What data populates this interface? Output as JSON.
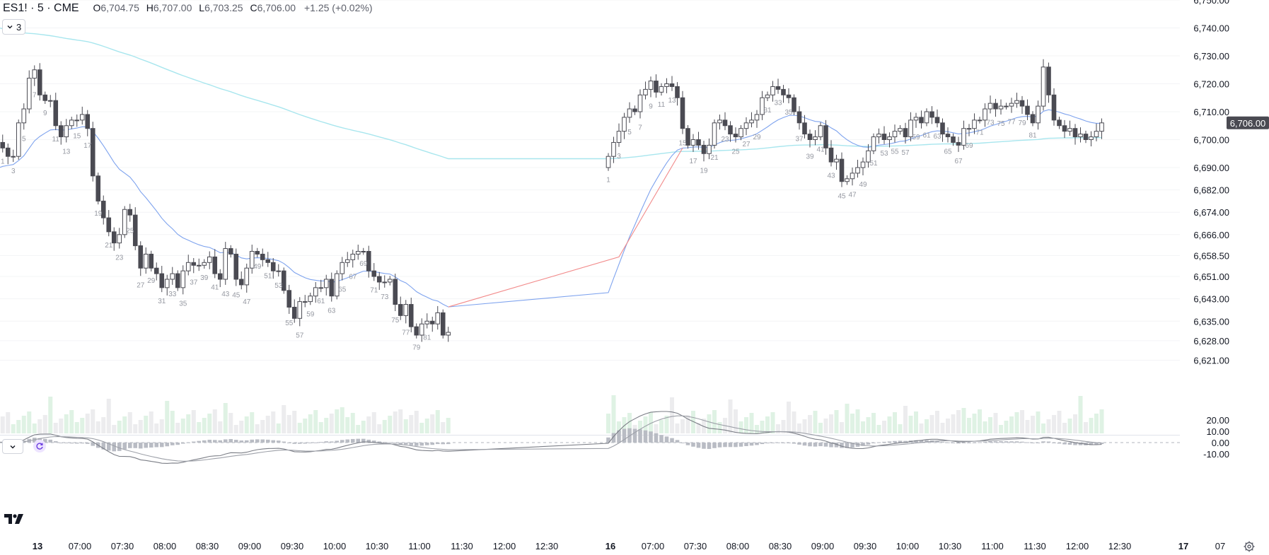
{
  "legend": {
    "symbol": "ES1! · 5 · CME",
    "open_key": "O",
    "open": "6,704.75",
    "high_key": "H",
    "high": "6,707.00",
    "low_key": "L",
    "low": "6,703.25",
    "close_key": "C",
    "close": "6,706.00",
    "change": "+1.25 (+0.02%)"
  },
  "collapse_button": {
    "count": "3",
    "icon": "chevron-down-icon"
  },
  "macd_pane": {
    "toggle_icon": "chevron-down-icon",
    "refresh_icon": "refresh-icon"
  },
  "colors": {
    "up_fill": "#ffffff",
    "candle_stroke": "#4a4a52",
    "down_fill": "#4a4a52",
    "ema_cyan": "#a8e6ee",
    "ema_blue": "#7ea3ee",
    "ema_red": "#f28a8a",
    "vol_up": "#dff2e4",
    "vol_down": "#ececee",
    "macd_hist": "#b9bcc4",
    "price_tag_bg": "#4a4a52",
    "price_tag_text": "#ffffff"
  },
  "chart_data": {
    "type": "candlestick",
    "instrument": "ES1!",
    "interval": "5",
    "exchange": "CME",
    "last_price": "6,706.00",
    "price_axis_ticks": [
      "6,750.00",
      "6,740.00",
      "6,730.00",
      "6,720.00",
      "6,710.00",
      "6,700.00",
      "6,690.00",
      "6,682.00",
      "6,674.00",
      "6,666.00",
      "6,658.50",
      "6,651.00",
      "6,643.00",
      "6,635.00",
      "6,628.00",
      "6,621.00"
    ],
    "macd_axis_ticks": [
      "20.00",
      "10.00",
      "0.00",
      "-10.00"
    ],
    "time_axis_ticks": [
      "13",
      "07:00",
      "07:30",
      "08:00",
      "08:30",
      "09:00",
      "09:30",
      "10:00",
      "10:30",
      "11:00",
      "11:30",
      "12:00",
      "12:30",
      "16",
      "07:00",
      "07:30",
      "08:00",
      "08:30",
      "09:00",
      "09:30",
      "10:00",
      "10:30",
      "11:00",
      "11:30",
      "12:00",
      "12:30",
      "17",
      "07"
    ],
    "time_axis_bold": [
      "13",
      "16",
      "17"
    ],
    "session1": {
      "closes": [
        6696,
        6699,
        6697,
        6694,
        6694,
        6706,
        6711,
        6722,
        6725,
        6716,
        6714,
        6714,
        6705,
        6701,
        6705,
        6707,
        6707,
        6709,
        6704,
        6687,
        6678,
        6672,
        6667,
        6663,
        6666,
        6675,
        6673,
        6662,
        6654,
        6659,
        6654,
        6652,
        6647,
        6650,
        6652,
        6647,
        6653,
        6656,
        6655,
        6655,
        6656,
        6658,
        6652,
        6650,
        6661,
        6659,
        6650,
        6648,
        6654,
        6660,
        6659,
        6657,
        6656,
        6653,
        6653,
        6646,
        6640,
        6636,
        6642,
        6642,
        6644,
        6647,
        6647,
        6650,
        6644,
        6652,
        6656,
        6657,
        6659,
        6660,
        6660,
        6653,
        6651,
        6649,
        6649,
        6650,
        6641,
        6637,
        6641,
        6633,
        6630,
        6634,
        6635,
        6634,
        6638,
        6630,
        6631
      ],
      "bar_labels": {
        "1": "1",
        "3": "3",
        "5": "5",
        "7": "7",
        "9": "9",
        "11": "11",
        "13": "13",
        "15": "15",
        "17": "17",
        "19": "19",
        "21": "21",
        "23": "23",
        "25": "25",
        "27": "27",
        "29": "29",
        "31": "31",
        "33": "33",
        "35": "35",
        "37": "37",
        "39": "39",
        "41": "41",
        "43": "43",
        "45": "45",
        "47": "47",
        "49": "49",
        "51": "51",
        "53": "53",
        "55": "55",
        "57": "57",
        "59": "59",
        "61": "61",
        "63": "63",
        "65": "65",
        "67": "67",
        "69": "69",
        "71": "71",
        "73": "73",
        "75": "75",
        "77": "77",
        "79": "79",
        "81": "81"
      }
    },
    "session2": {
      "closes": [
        6694,
        6699,
        6703,
        6708,
        6711,
        6710,
        6716,
        6718,
        6721,
        6717,
        6719,
        6720,
        6719,
        6715,
        6704,
        6698,
        6700,
        6698,
        6695,
        6698,
        6706,
        6707,
        6705,
        6702,
        6701,
        6704,
        6706,
        6707,
        6709,
        6715,
        6716,
        6719,
        6718,
        6716,
        6715,
        6710,
        6706,
        6702,
        6700,
        6701,
        6705,
        6697,
        6692,
        6693,
        6685,
        6686,
        6688,
        6690,
        6692,
        6696,
        6701,
        6702,
        6700,
        6701,
        6703,
        6704,
        6701,
        6707,
        6708,
        6706,
        6710,
        6708,
        6706,
        6702,
        6701,
        6699,
        6698,
        6704,
        6704,
        6707,
        6707,
        6711,
        6713,
        6711,
        6712,
        6712,
        6713,
        6714,
        6712,
        6709,
        6706,
        6712,
        6726,
        6716,
        6707,
        6705,
        6703,
        6704,
        6701,
        6702,
        6700,
        6701,
        6703,
        6706
      ],
      "bar_labels": [
        "1",
        "3",
        "5",
        "7",
        "9",
        "11",
        "13",
        "15",
        "17",
        "19",
        "21",
        "23",
        "25",
        "27",
        "29",
        "31",
        "33",
        "35",
        "37",
        "39",
        "41",
        "43",
        "45",
        "47",
        "49",
        "51",
        "53",
        "55",
        "57",
        "59",
        "61",
        "63",
        "65",
        "67",
        "69",
        "71",
        "73",
        "75",
        "77",
        "79",
        "81"
      ]
    },
    "series": [
      {
        "name": "EMA long",
        "color": "cyan"
      },
      {
        "name": "EMA short",
        "color": "blue/red"
      },
      {
        "name": "Volume"
      },
      {
        "name": "MACD histogram"
      },
      {
        "name": "MACD"
      },
      {
        "name": "Signal"
      }
    ]
  }
}
